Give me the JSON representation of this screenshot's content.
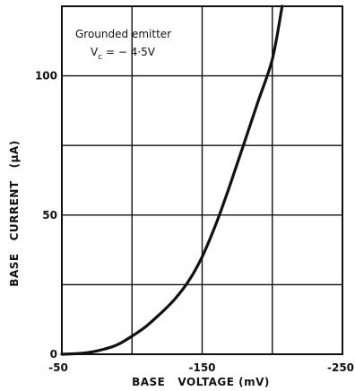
{
  "chart_data": {
    "type": "line",
    "xlabel": "BASE   VOLTAGE (mV)",
    "ylabel": "BASE   CURRENT   (μA)",
    "xlim": [
      -50,
      -250
    ],
    "ylim": [
      0,
      125
    ],
    "x_ticks": [
      -50,
      -100,
      -150,
      -200,
      -250
    ],
    "x_tick_labels": [
      "-50",
      "",
      "-150",
      "",
      "-250"
    ],
    "y_ticks": [
      0,
      25,
      50,
      75,
      100,
      125
    ],
    "y_tick_labels": [
      "0",
      "",
      "50",
      "",
      "100",
      ""
    ],
    "grid": true,
    "annotation": {
      "line1": "Grounded  emitter",
      "line2_prefix": "V",
      "line2_sub": "c",
      "line2_suffix": " = − 4·5V"
    },
    "series": [
      {
        "values_x": [
          -50,
          -60,
          -70,
          -80,
          -90,
          -100,
          -110,
          -120,
          -130,
          -140,
          -150,
          -160,
          -170,
          -180,
          -190,
          -200,
          -207
        ],
        "values_y": [
          0,
          0.2,
          0.7,
          1.8,
          3.5,
          6.5,
          10,
          14.5,
          19.5,
          26,
          35,
          47,
          61,
          76,
          91,
          106,
          125
        ]
      }
    ]
  }
}
